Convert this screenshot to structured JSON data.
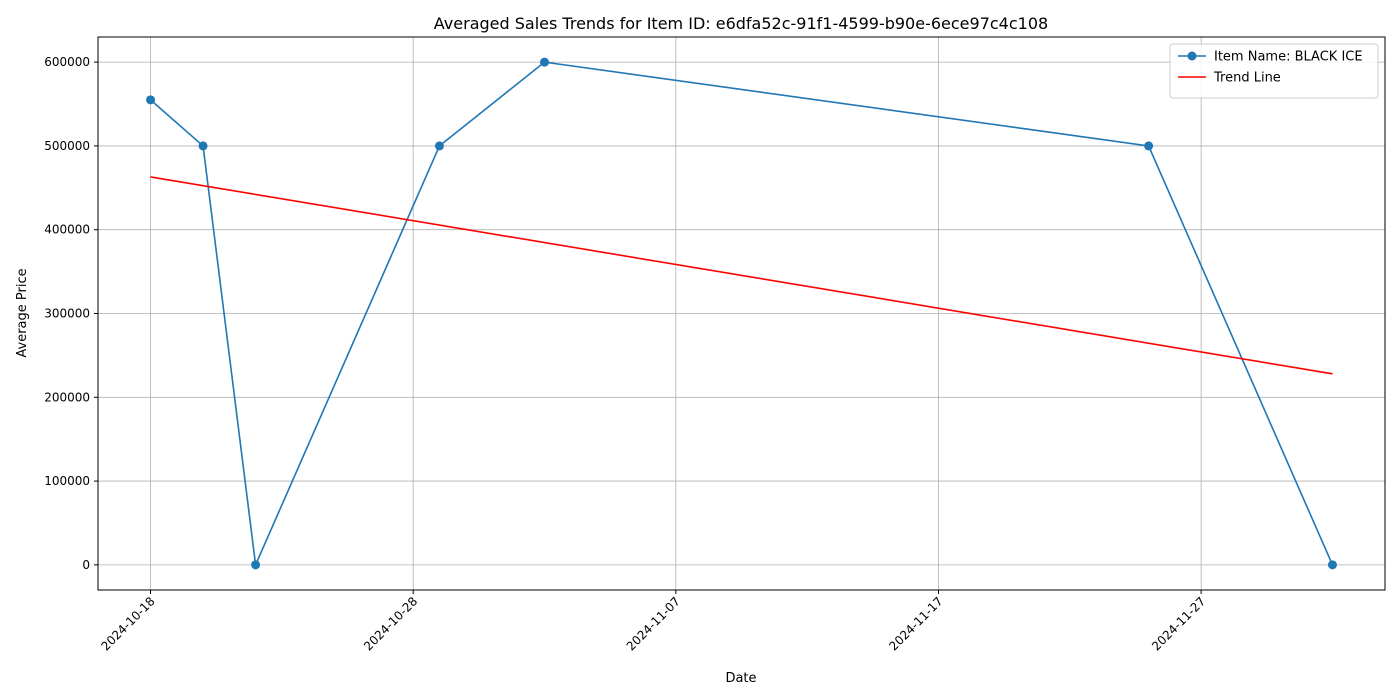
{
  "chart_data": {
    "type": "line",
    "title": "Averaged Sales Trends for Item ID: e6dfa52c-91f1-4599-b90e-6ece97c4c108",
    "xlabel": "Date",
    "ylabel": "Average Price",
    "xlim": [
      "2024-10-16",
      "2024-12-04"
    ],
    "ylim": [
      -30000,
      630000
    ],
    "x_ticks": [
      "2024-10-18",
      "2024-10-28",
      "2024-11-07",
      "2024-11-17",
      "2024-11-27"
    ],
    "y_ticks": [
      0,
      100000,
      200000,
      300000,
      400000,
      500000,
      600000
    ],
    "grid": true,
    "legend_position": "top-right",
    "series": [
      {
        "name": "Item Name: BLACK ICE",
        "color": "#1f77b4",
        "marker": "circle",
        "x": [
          "2024-10-18",
          "2024-10-20",
          "2024-10-22",
          "2024-10-29",
          "2024-11-02",
          "2024-11-25",
          "2024-12-02"
        ],
        "y": [
          555000,
          500000,
          0,
          500000,
          600000,
          500000,
          0
        ]
      },
      {
        "name": "Trend Line",
        "color": "#ff0000",
        "marker": "none",
        "x": [
          "2024-10-18",
          "2024-12-02"
        ],
        "y": [
          463000,
          228000
        ]
      }
    ]
  }
}
